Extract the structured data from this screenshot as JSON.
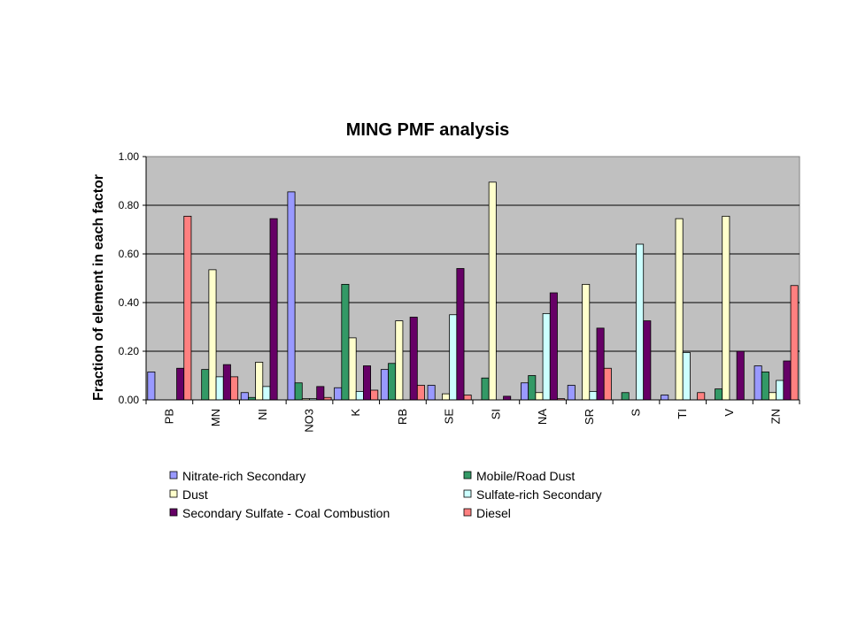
{
  "chart_data": {
    "type": "bar",
    "title": "MING PMF analysis",
    "xlabel": "",
    "ylabel": "Fraction of element in each factor",
    "ylim": [
      0,
      1.0
    ],
    "yticks": [
      "0.00",
      "0.20",
      "0.40",
      "0.60",
      "0.80",
      "1.00"
    ],
    "grid": true,
    "legend_position": "bottom",
    "categories": [
      "PB",
      "MN",
      "NI",
      "NO3",
      "K",
      "RB",
      "SE",
      "SI",
      "NA",
      "SR",
      "S",
      "TI",
      "V",
      "ZN"
    ],
    "series": [
      {
        "name": "Nitrate-rich Secondary",
        "color": "#9999ff",
        "values": [
          0.115,
          0,
          0.03,
          0.855,
          0.05,
          0.125,
          0.06,
          0,
          0.07,
          0.06,
          0,
          0.02,
          0,
          0.14
        ]
      },
      {
        "name": "Mobile/Road Dust",
        "color": "#339966",
        "values": [
          0,
          0.125,
          0.01,
          0.07,
          0.475,
          0.15,
          0,
          0.09,
          0.1,
          0,
          0.03,
          0,
          0.045,
          0.115
        ]
      },
      {
        "name": "Dust",
        "color": "#ffffcc",
        "values": [
          0,
          0.535,
          0.155,
          0.005,
          0.255,
          0.325,
          0.025,
          0.895,
          0.03,
          0.475,
          0,
          0.745,
          0.755,
          0.03
        ]
      },
      {
        "name": "Sulfate-rich Secondary",
        "color": "#ccffff",
        "values": [
          0,
          0.095,
          0.055,
          0.005,
          0.035,
          0,
          0.35,
          0,
          0.355,
          0.035,
          0.64,
          0.195,
          0,
          0.08
        ]
      },
      {
        "name": "Secondary Sulfate - Coal Combustion",
        "color": "#660066",
        "values": [
          0.13,
          0.145,
          0.745,
          0.055,
          0.14,
          0.34,
          0.54,
          0.015,
          0.44,
          0.295,
          0.325,
          0,
          0.2,
          0.16
        ]
      },
      {
        "name": "Diesel",
        "color": "#ff8080",
        "values": [
          0.755,
          0.095,
          0,
          0.01,
          0.04,
          0.06,
          0.02,
          0,
          0.005,
          0.13,
          0,
          0.03,
          0,
          0.47
        ]
      }
    ]
  }
}
